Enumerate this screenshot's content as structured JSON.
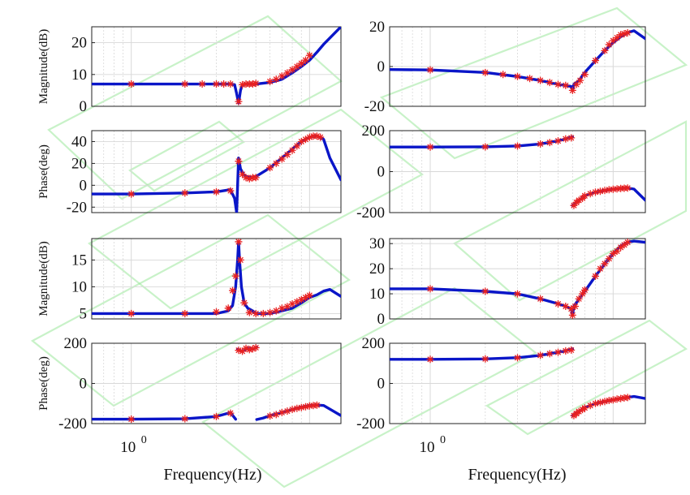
{
  "figure": {
    "xlabel": "Frequency(Hz)",
    "xtick_label_base": "10",
    "xtick_label_exp": "0",
    "colors": {
      "fit_line": "#0a16c8",
      "measured_marker": "#e82020",
      "grid": "#d8d8d8",
      "watermark": "#9be89b"
    }
  },
  "chart_data": [
    {
      "type": "line",
      "panel": "left-1",
      "ylabel": "Magnitude(dB)",
      "xscale": "log",
      "xlim": [
        0.6,
        15
      ],
      "ylim": [
        0,
        25
      ],
      "yticks": [
        "0",
        "10",
        "20"
      ],
      "grid": true,
      "series": [
        {
          "role": "fit",
          "x": [
            0.6,
            1,
            2,
            3,
            3.6,
            3.8,
            3.9,
            4,
            4.1,
            4.2,
            4.5,
            5,
            6,
            7,
            8,
            9,
            10,
            11,
            12,
            15
          ],
          "y": [
            7,
            7,
            7,
            7,
            7,
            6.8,
            4,
            1,
            5,
            6.8,
            7,
            7,
            7.5,
            8.5,
            10.5,
            12.5,
            14.5,
            17,
            19.5,
            25
          ]
        },
        {
          "role": "measured",
          "x": [
            1,
            2,
            2.5,
            3,
            3.3,
            3.6,
            4,
            4.2,
            4.4,
            4.6,
            4.8,
            5,
            6,
            6.5,
            7,
            7.5,
            8,
            8.5,
            9,
            9.5,
            10
          ],
          "y": [
            7,
            7,
            7,
            7,
            7,
            7,
            1.5,
            6.8,
            7,
            7,
            7,
            7.2,
            7.8,
            8.5,
            9.5,
            10.5,
            11.5,
            12.5,
            13.5,
            14.5,
            16
          ]
        }
      ]
    },
    {
      "type": "line",
      "panel": "right-1",
      "ylabel": "",
      "xscale": "log",
      "xlim": [
        0.6,
        15
      ],
      "ylim": [
        -20,
        20
      ],
      "yticks": [
        "-20",
        "0",
        "20"
      ],
      "grid": true,
      "series": [
        {
          "role": "fit",
          "x": [
            0.6,
            1,
            2,
            3,
            4,
            5,
            5.5,
            5.9,
            6,
            6.1,
            6.5,
            7,
            8,
            9,
            10,
            11,
            12,
            13,
            15
          ],
          "y": [
            -1.5,
            -1.7,
            -3,
            -5,
            -7,
            -9,
            -9.5,
            -10,
            -12,
            -9,
            -7,
            -3,
            3,
            8,
            12,
            15,
            17,
            18,
            14
          ]
        },
        {
          "role": "measured",
          "x": [
            1,
            2,
            2.5,
            3,
            3.5,
            4,
            4.5,
            5,
            5.5,
            6,
            6.3,
            6.6,
            7,
            8,
            9,
            9.5,
            10,
            10.5,
            11,
            11.5,
            12
          ],
          "y": [
            -1.7,
            -3,
            -4,
            -5,
            -6,
            -7,
            -8,
            -9,
            -9.5,
            -12,
            -9,
            -7,
            -4,
            3,
            8,
            11,
            13,
            14.5,
            16,
            16.5,
            17
          ]
        }
      ]
    },
    {
      "type": "line",
      "panel": "left-2",
      "ylabel": "Phase(deg)",
      "xscale": "log",
      "xlim": [
        0.6,
        15
      ],
      "ylim": [
        -25,
        50
      ],
      "yticks": [
        "-20",
        "0",
        "20",
        "40"
      ],
      "grid": true,
      "series": [
        {
          "role": "fit",
          "x": [
            0.6,
            1,
            2,
            3,
            3.6,
            3.8,
            3.9,
            4,
            4.1,
            4.3,
            4.6,
            5,
            6,
            7,
            8,
            9,
            10,
            11,
            12,
            13,
            15
          ],
          "y": [
            -8,
            -8,
            -7,
            -6,
            -4,
            -12,
            -25,
            25,
            15,
            9,
            7,
            8,
            16,
            25,
            33,
            40,
            44,
            45,
            42,
            25,
            5
          ]
        },
        {
          "role": "measured",
          "x": [
            1,
            2,
            3,
            3.6,
            4,
            4.2,
            4.4,
            4.6,
            4.8,
            5,
            6,
            6.5,
            7,
            7.5,
            8,
            8.5,
            9,
            9.5,
            10,
            10.5,
            11,
            11.5
          ],
          "y": [
            -8,
            -7,
            -6,
            -5,
            22,
            10,
            7,
            6,
            7,
            7,
            16,
            20,
            24,
            28,
            32,
            36,
            40,
            42,
            44,
            45,
            45,
            44
          ]
        }
      ]
    },
    {
      "type": "line",
      "panel": "right-2",
      "ylabel": "",
      "xscale": "log",
      "xlim": [
        0.6,
        15
      ],
      "ylim": [
        -200,
        200
      ],
      "yticks": [
        "-200",
        "0",
        "200"
      ],
      "grid": true,
      "series": [
        {
          "role": "fit",
          "x": [
            0.6,
            1,
            2,
            3,
            4,
            5,
            5.5,
            6
          ],
          "y": [
            120,
            120,
            121,
            125,
            135,
            150,
            160,
            170
          ]
        },
        {
          "role": "fit",
          "x": [
            6,
            6.5,
            7,
            8,
            9,
            10,
            11,
            12,
            13,
            15
          ],
          "y": [
            -165,
            -140,
            -118,
            -100,
            -92,
            -86,
            -82,
            -80,
            -85,
            -140
          ]
        },
        {
          "role": "measured",
          "x": [
            1,
            2,
            3,
            4,
            4.5,
            5,
            5.5,
            5.9
          ],
          "y": [
            120,
            121,
            125,
            135,
            142,
            150,
            160,
            165
          ]
        },
        {
          "role": "measured",
          "x": [
            6.1,
            6.3,
            6.5,
            6.8,
            7,
            7.5,
            8,
            8.5,
            9,
            9.5,
            10,
            10.5,
            11,
            11.5,
            12
          ],
          "y": [
            -165,
            -150,
            -140,
            -130,
            -118,
            -108,
            -100,
            -96,
            -92,
            -88,
            -86,
            -84,
            -82,
            -81,
            -80
          ]
        }
      ]
    },
    {
      "type": "line",
      "panel": "left-3",
      "ylabel": "Magnitude(dB)",
      "xscale": "log",
      "xlim": [
        0.6,
        15
      ],
      "ylim": [
        4,
        19
      ],
      "yticks": [
        "5",
        "10",
        "15"
      ],
      "grid": true,
      "series": [
        {
          "role": "fit",
          "x": [
            0.6,
            1,
            2,
            3,
            3.5,
            3.7,
            3.85,
            3.95,
            4,
            4.05,
            4.15,
            4.3,
            4.5,
            4.8,
            5,
            6,
            7,
            8,
            9,
            10,
            11,
            12,
            13,
            15
          ],
          "y": [
            5,
            5,
            5,
            5,
            5.5,
            6.5,
            10,
            15,
            18.4,
            15,
            10,
            7,
            6,
            5.5,
            5,
            5,
            5.5,
            6,
            7,
            8,
            8.5,
            9.2,
            9.5,
            8.2
          ]
        },
        {
          "role": "measured",
          "x": [
            1,
            2,
            3,
            3.5,
            3.7,
            3.85,
            4,
            4.1,
            4.3,
            4.6,
            5,
            5.5,
            6,
            6.5,
            7,
            7.5,
            8,
            8.5,
            9,
            9.5,
            10
          ],
          "y": [
            5,
            5,
            5.3,
            6,
            9.3,
            12,
            18.4,
            15,
            7,
            5.2,
            5,
            5,
            5.2,
            5.5,
            6,
            6.3,
            6.8,
            7.2,
            7.6,
            8,
            8.4
          ]
        }
      ]
    },
    {
      "type": "line",
      "panel": "right-3",
      "ylabel": "",
      "xscale": "log",
      "xlim": [
        0.6,
        15
      ],
      "ylim": [
        0,
        32
      ],
      "yticks": [
        "0",
        "10",
        "20",
        "30"
      ],
      "grid": true,
      "series": [
        {
          "role": "fit",
          "x": [
            0.6,
            1,
            2,
            3,
            4,
            5,
            5.5,
            5.9,
            6,
            6.1,
            6.5,
            7,
            8,
            9,
            10,
            11,
            12,
            13,
            15
          ],
          "y": [
            12,
            12,
            11,
            10,
            8,
            6,
            5,
            4,
            1.5,
            5,
            8,
            11,
            17,
            22,
            26,
            29,
            30.5,
            31,
            30.5
          ]
        },
        {
          "role": "measured",
          "x": [
            1,
            2,
            3,
            4,
            5,
            5.5,
            5.9,
            6,
            6.2,
            6.5,
            6.8,
            7,
            8,
            8.5,
            9,
            9.5,
            10,
            10.5,
            11,
            11.5,
            12
          ],
          "y": [
            12,
            11,
            10,
            8,
            6,
            5,
            4,
            1.5,
            5,
            8,
            10,
            11.5,
            17,
            20,
            22,
            24,
            26,
            27,
            28.5,
            29.5,
            30.5
          ]
        }
      ]
    },
    {
      "type": "line",
      "panel": "left-4",
      "ylabel": "Phase(deg)",
      "xscale": "log",
      "xlim": [
        0.6,
        15
      ],
      "ylim": [
        -200,
        200
      ],
      "yticks": [
        "-200",
        "0",
        "200"
      ],
      "grid": true,
      "series": [
        {
          "role": "fit",
          "x": [
            0.6,
            1,
            2,
            3,
            3.6,
            3.85
          ],
          "y": [
            -178,
            -178,
            -176,
            -165,
            -145,
            -178
          ]
        },
        {
          "role": "fit",
          "x": [
            3.95,
            4.2,
            4.5,
            4.8,
            5,
            5.05
          ],
          "y": [
            170,
            160,
            175,
            170,
            178,
            180
          ]
        },
        {
          "role": "fit",
          "x": [
            5.05,
            5.5,
            6,
            7,
            8,
            9,
            10,
            11,
            12,
            15
          ],
          "y": [
            -180,
            -172,
            -160,
            -145,
            -130,
            -118,
            -110,
            -108,
            -110,
            -160
          ]
        },
        {
          "role": "measured",
          "x": [
            1,
            2,
            3,
            3.6
          ],
          "y": [
            -178,
            -176,
            -165,
            -148
          ]
        },
        {
          "role": "measured",
          "x": [
            4,
            4.2,
            4.4,
            4.6,
            4.8,
            5
          ],
          "y": [
            165,
            160,
            175,
            168,
            172,
            178
          ]
        },
        {
          "role": "measured",
          "x": [
            6,
            6.5,
            7,
            7.5,
            8,
            8.5,
            9,
            9.5,
            10,
            10.5,
            11
          ],
          "y": [
            -162,
            -155,
            -145,
            -138,
            -130,
            -124,
            -120,
            -116,
            -112,
            -110,
            -108
          ]
        }
      ]
    },
    {
      "type": "line",
      "panel": "right-4",
      "ylabel": "",
      "xscale": "log",
      "xlim": [
        0.6,
        15
      ],
      "ylim": [
        -200,
        200
      ],
      "yticks": [
        "-200",
        "0",
        "200"
      ],
      "grid": true,
      "series": [
        {
          "role": "fit",
          "x": [
            0.6,
            1,
            2,
            3,
            4,
            5,
            5.5,
            6
          ],
          "y": [
            120,
            120,
            122,
            128,
            140,
            155,
            162,
            172
          ]
        },
        {
          "role": "fit",
          "x": [
            6,
            6.5,
            7,
            8,
            9,
            10,
            11,
            12,
            13,
            15
          ],
          "y": [
            -160,
            -140,
            -120,
            -100,
            -90,
            -82,
            -75,
            -70,
            -65,
            -75
          ]
        },
        {
          "role": "measured",
          "x": [
            1,
            2,
            3,
            4,
            4.5,
            5,
            5.5,
            5.9
          ],
          "y": [
            120,
            122,
            128,
            140,
            148,
            155,
            162,
            166
          ]
        },
        {
          "role": "measured",
          "x": [
            6.1,
            6.3,
            6.5,
            6.8,
            7,
            7.5,
            8,
            8.5,
            9,
            9.5,
            10,
            10.5,
            11,
            11.5,
            12
          ],
          "y": [
            -160,
            -150,
            -140,
            -130,
            -122,
            -110,
            -100,
            -95,
            -90,
            -85,
            -82,
            -78,
            -75,
            -72,
            -70
          ]
        }
      ]
    }
  ]
}
